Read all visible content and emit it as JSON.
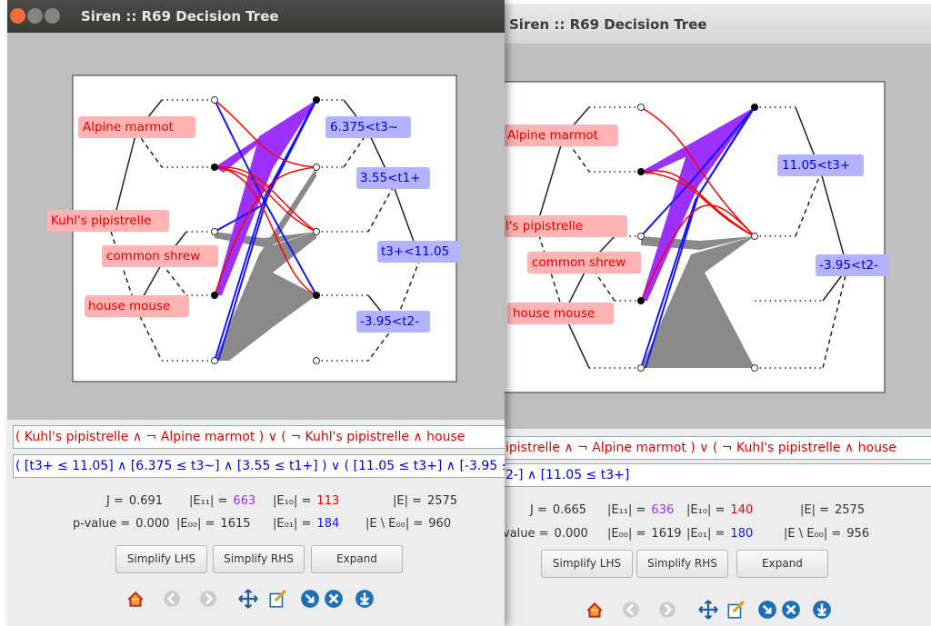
{
  "windows": [
    {
      "title": "Siren :: R69 Decision Tree",
      "tree": {
        "lhs_nodes": [
          "Alpine marmot",
          "Kuhl's pipistrelle",
          "common shrew",
          "house mouse"
        ],
        "rhs_nodes": [
          "6.375<t3~",
          "3.55<t1+",
          "t3+<11.05",
          "-3.95<t2-"
        ]
      },
      "queries": {
        "lhs": "( Kuhl's pipistrelle ∧ ¬ Alpine marmot ) ∨ ( ¬ Kuhl's pipistrelle ∧ house",
        "rhs": "( [t3+ ≤ 11.05] ∧ [6.375 ≤ t3~] ∧ [3.55 ≤ t1+] ) ∨ ( [11.05 ≤ t3+] ∧ [-3.95 ≤"
      },
      "stats": [
        [
          {
            "label": "J =",
            "value": "0.691"
          },
          {
            "label": "|E₁₁| =",
            "value": "663"
          },
          {
            "label": "|E₁₀| =",
            "value": "113"
          },
          {
            "label": "|E| =",
            "value": "2575"
          }
        ],
        [
          {
            "label": "p-value =",
            "value": "0.000"
          },
          {
            "label": "|E₀₀| =",
            "value": "1615"
          },
          {
            "label": "|E₀₁| =",
            "value": "184"
          },
          {
            "label": "|E \\ E₀₀| =",
            "value": "960"
          }
        ]
      ],
      "buttons": [
        "Simplify LHS",
        "Simplify RHS",
        "Expand"
      ]
    },
    {
      "title": "Siren :: R69 Decision Tree",
      "tree": {
        "lhs_nodes": [
          "Alpine marmot",
          "l's pipistrelle",
          "common shrew",
          "house mouse"
        ],
        "rhs_nodes": [
          "11.05<t3+",
          "-3.95<t2-"
        ]
      },
      "queries": {
        "lhs": "ipistrelle ∧ ¬ Alpine marmot ) ∨ ( ¬ Kuhl's pipistrelle ∧ house",
        "rhs": "2-] ∧ [11.05 ≤ t3+]"
      },
      "stats": [
        [
          {
            "label": "J =",
            "value": "0.665"
          },
          {
            "label": "|E₁₁| =",
            "value": "636"
          },
          {
            "label": "|E₁₀| =",
            "value": "140"
          },
          {
            "label": "|E| =",
            "value": "2575"
          }
        ],
        [
          {
            "label": "value =",
            "value": "0.000"
          },
          {
            "label": "|E₀₀| =",
            "value": "1619"
          },
          {
            "label": "|E₀₁| =",
            "value": "180"
          },
          {
            "label": "|E \\ E₀₀| =",
            "value": "956"
          }
        ]
      ],
      "buttons": [
        "Simplify LHS",
        "Simplify RHS",
        "Expand"
      ]
    }
  ]
}
